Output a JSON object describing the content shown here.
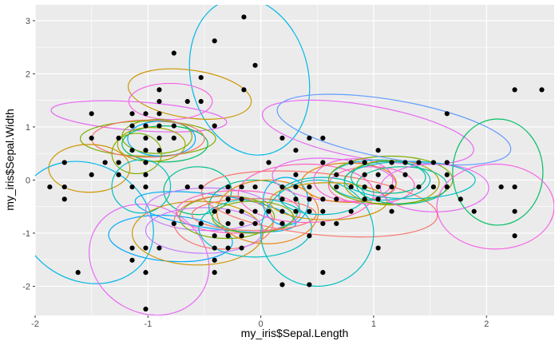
{
  "chart_data": {
    "type": "scatter",
    "xlabel": "my_iris$Sepal.Length",
    "ylabel": "my_iris$Sepal.Width",
    "xlim": [
      -2.0,
      2.6
    ],
    "ylim": [
      -2.55,
      3.3
    ],
    "x_ticks": [
      -2,
      -1,
      0,
      1,
      2
    ],
    "y_ticks": [
      -2,
      -1,
      0,
      1,
      2,
      3
    ],
    "x_tick_labels": [
      "-2",
      "-1",
      "0",
      "1",
      "2"
    ],
    "y_tick_labels": [
      "-2",
      "-1",
      "0",
      "1",
      "2",
      "3"
    ],
    "grid": true,
    "legend": "none",
    "panel_background": "#ebebeb",
    "grid_color": "#ffffff",
    "point_color": "#000000",
    "points": [
      [
        -0.15,
        3.07
      ],
      [
        -0.41,
        2.62
      ],
      [
        -0.77,
        2.39
      ],
      [
        -0.53,
        1.93
      ],
      [
        -0.05,
        2.16
      ],
      [
        -0.15,
        1.7
      ],
      [
        -0.9,
        1.7
      ],
      [
        -0.9,
        1.48
      ],
      [
        -0.65,
        1.48
      ],
      [
        -0.53,
        1.48
      ],
      [
        -0.9,
        1.25
      ],
      [
        -1.02,
        1.25
      ],
      [
        -1.14,
        1.25
      ],
      [
        -1.5,
        1.25
      ],
      [
        -1.14,
        1.02
      ],
      [
        -1.02,
        1.02
      ],
      [
        -0.9,
        1.02
      ],
      [
        -0.77,
        1.02
      ],
      [
        -0.41,
        1.02
      ],
      [
        -1.02,
        0.79
      ],
      [
        -0.9,
        0.79
      ],
      [
        -0.77,
        0.79
      ],
      [
        -1.26,
        0.79
      ],
      [
        -1.5,
        0.79
      ],
      [
        -1.02,
        0.56
      ],
      [
        -0.9,
        0.56
      ],
      [
        -1.14,
        0.56
      ],
      [
        -1.02,
        0.33
      ],
      [
        -1.38,
        0.33
      ],
      [
        -1.74,
        0.33
      ],
      [
        -1.26,
        0.33
      ],
      [
        -1.5,
        0.1
      ],
      [
        -1.26,
        0.1
      ],
      [
        -1.02,
        0.1
      ],
      [
        -1.87,
        -0.13
      ],
      [
        -1.74,
        -0.13
      ],
      [
        -1.14,
        -0.13
      ],
      [
        -1.02,
        -0.13
      ],
      [
        -1.74,
        -0.36
      ],
      [
        0.07,
        0.33
      ],
      [
        0.19,
        0.79
      ],
      [
        0.43,
        0.79
      ],
      [
        0.55,
        0.79
      ],
      [
        0.31,
        0.56
      ],
      [
        1.04,
        0.56
      ],
      [
        0.55,
        0.33
      ],
      [
        0.8,
        0.33
      ],
      [
        0.92,
        0.33
      ],
      [
        1.16,
        0.33
      ],
      [
        1.28,
        0.33
      ],
      [
        1.4,
        0.33
      ],
      [
        1.53,
        0.33
      ],
      [
        1.65,
        0.33
      ],
      [
        0.67,
        0.1
      ],
      [
        0.92,
        0.1
      ],
      [
        1.04,
        0.1
      ],
      [
        1.28,
        0.1
      ],
      [
        0.31,
        0.1
      ],
      [
        -0.53,
        -0.13
      ],
      [
        -0.29,
        -0.13
      ],
      [
        -0.05,
        -0.13
      ],
      [
        0.19,
        -0.13
      ],
      [
        0.43,
        -0.13
      ],
      [
        0.67,
        -0.13
      ],
      [
        0.8,
        -0.13
      ],
      [
        0.92,
        -0.13
      ],
      [
        1.04,
        -0.13
      ],
      [
        1.16,
        -0.13
      ],
      [
        1.4,
        -0.13
      ],
      [
        1.53,
        -0.13
      ],
      [
        1.65,
        -0.13
      ],
      [
        2.13,
        -0.13
      ],
      [
        2.25,
        -0.13
      ],
      [
        -0.29,
        -0.36
      ],
      [
        -0.17,
        -0.36
      ],
      [
        0.19,
        -0.36
      ],
      [
        0.31,
        -0.36
      ],
      [
        0.43,
        -0.36
      ],
      [
        0.55,
        -0.36
      ],
      [
        0.67,
        -0.36
      ],
      [
        0.92,
        -0.36
      ],
      [
        1.04,
        -0.36
      ],
      [
        1.77,
        -0.36
      ],
      [
        -0.41,
        -0.59
      ],
      [
        -0.29,
        -0.59
      ],
      [
        -0.17,
        -0.59
      ],
      [
        -0.05,
        -0.59
      ],
      [
        0.07,
        -0.59
      ],
      [
        0.19,
        -0.59
      ],
      [
        0.31,
        -0.59
      ],
      [
        0.43,
        -0.59
      ],
      [
        0.55,
        -0.59
      ],
      [
        0.8,
        -0.59
      ],
      [
        1.16,
        -0.59
      ],
      [
        1.89,
        -0.59
      ],
      [
        2.25,
        -0.59
      ],
      [
        -0.77,
        -0.82
      ],
      [
        -0.53,
        -0.82
      ],
      [
        -0.29,
        -0.82
      ],
      [
        -0.17,
        -0.82
      ],
      [
        -0.05,
        -0.82
      ],
      [
        0.19,
        -0.82
      ],
      [
        0.55,
        -0.82
      ],
      [
        0.67,
        -0.82
      ],
      [
        -0.41,
        -1.05
      ],
      [
        -0.29,
        -1.05
      ],
      [
        -0.17,
        -1.05
      ],
      [
        0.43,
        -1.05
      ],
      [
        2.25,
        -1.05
      ],
      [
        -0.41,
        -1.28
      ],
      [
        -0.29,
        -1.28
      ],
      [
        -0.17,
        -1.28
      ],
      [
        -0.9,
        -1.28
      ],
      [
        -1.14,
        -1.28
      ],
      [
        -1.02,
        -1.28
      ],
      [
        1.04,
        -1.28
      ],
      [
        -0.41,
        -1.51
      ],
      [
        -1.14,
        -1.51
      ],
      [
        -0.41,
        -1.74
      ],
      [
        -1.02,
        -1.74
      ],
      [
        -1.62,
        -1.74
      ],
      [
        0.55,
        -1.74
      ],
      [
        0.19,
        -1.97
      ],
      [
        0.43,
        -1.97
      ],
      [
        -1.02,
        -2.43
      ],
      [
        1.65,
        1.25
      ],
      [
        2.25,
        1.7
      ],
      [
        2.49,
        1.7
      ],
      [
        1.65,
        0.1
      ],
      [
        -0.65,
        -0.13
      ],
      [
        -0.17,
        -0.13
      ],
      [
        0.31,
        -0.13
      ]
    ],
    "ellipses": [
      {
        "cx": -0.1,
        "cy": 1.95,
        "rx": 0.52,
        "ry": 1.5,
        "angle": 14,
        "color": "#00b8e7"
      },
      {
        "cx": -0.63,
        "cy": 1.62,
        "rx": 0.55,
        "ry": 0.45,
        "angle": -8,
        "color": "#cd9600"
      },
      {
        "cx": -0.8,
        "cy": 1.48,
        "rx": 0.37,
        "ry": 0.34,
        "angle": 0,
        "color": "#f564e3"
      },
      {
        "cx": -1.08,
        "cy": 1.2,
        "rx": 0.78,
        "ry": 0.27,
        "angle": -4,
        "color": "#e76bf3"
      },
      {
        "cx": -1.0,
        "cy": 0.78,
        "rx": 0.6,
        "ry": 0.33,
        "angle": 0,
        "color": "#7cae00"
      },
      {
        "cx": -0.88,
        "cy": 0.78,
        "rx": 0.3,
        "ry": 0.33,
        "angle": 0,
        "color": "#00a9ff"
      },
      {
        "cx": -0.92,
        "cy": 0.82,
        "rx": 0.31,
        "ry": 0.32,
        "angle": 0,
        "color": "#7cae00"
      },
      {
        "cx": -0.85,
        "cy": 0.68,
        "rx": 0.38,
        "ry": 0.34,
        "angle": 0,
        "color": "#00be67"
      },
      {
        "cx": -0.97,
        "cy": 0.67,
        "rx": 0.3,
        "ry": 0.32,
        "angle": 0,
        "color": "#a3a500"
      },
      {
        "cx": -1.0,
        "cy": 0.78,
        "rx": 0.5,
        "ry": 0.35,
        "angle": 0,
        "color": "#f8766d"
      },
      {
        "cx": -1.1,
        "cy": 0.5,
        "rx": 0.22,
        "ry": 0.38,
        "angle": 0,
        "color": "#7cae00"
      },
      {
        "cx": -1.52,
        "cy": 0.22,
        "rx": 0.36,
        "ry": 0.45,
        "angle": 0,
        "color": "#cd9600"
      },
      {
        "cx": -1.06,
        "cy": -0.12,
        "rx": 0.26,
        "ry": 0.5,
        "angle": 0,
        "color": "#00bfc4"
      },
      {
        "cx": -1.55,
        "cy": -0.8,
        "rx": 0.62,
        "ry": 1.1,
        "angle": -28,
        "color": "#00b8e7"
      },
      {
        "cx": -0.99,
        "cy": -1.5,
        "rx": 0.55,
        "ry": 1.0,
        "angle": -30,
        "color": "#e76bf3"
      },
      {
        "cx": -0.8,
        "cy": -1.1,
        "rx": 0.55,
        "ry": 0.43,
        "angle": -4,
        "color": "#00a9ff"
      },
      {
        "cx": -0.56,
        "cy": -1.0,
        "rx": 0.58,
        "ry": 0.6,
        "angle": 0,
        "color": "#cd9600"
      },
      {
        "cx": -0.4,
        "cy": -0.6,
        "rx": 0.72,
        "ry": 0.32,
        "angle": -8,
        "color": "#00b0f6"
      },
      {
        "cx": -0.56,
        "cy": -0.2,
        "rx": 0.3,
        "ry": 0.45,
        "angle": 0,
        "color": "#00c08b"
      },
      {
        "cx": -0.47,
        "cy": -0.55,
        "rx": 0.55,
        "ry": 0.4,
        "angle": 0,
        "color": "#c77cff"
      },
      {
        "cx": -0.3,
        "cy": -0.7,
        "rx": 0.42,
        "ry": 0.4,
        "angle": 0,
        "color": "#7cae00"
      },
      {
        "cx": -0.33,
        "cy": -0.8,
        "rx": 0.44,
        "ry": 0.5,
        "angle": 0,
        "color": "#f8766d"
      },
      {
        "cx": -0.5,
        "cy": -0.95,
        "rx": 0.52,
        "ry": 0.43,
        "angle": 0,
        "color": "#c77cff"
      },
      {
        "cx": -0.2,
        "cy": -0.6,
        "rx": 0.55,
        "ry": 0.4,
        "angle": 0,
        "color": "#ff61c3"
      },
      {
        "cx": -0.05,
        "cy": -0.9,
        "rx": 0.5,
        "ry": 0.55,
        "angle": 0,
        "color": "#00bfc4"
      },
      {
        "cx": -0.06,
        "cy": -0.5,
        "rx": 0.4,
        "ry": 0.5,
        "angle": 0,
        "color": "#00c08b"
      },
      {
        "cx": 0.06,
        "cy": -0.6,
        "rx": 0.45,
        "ry": 0.6,
        "angle": 0,
        "color": "#e68613"
      },
      {
        "cx": 0.22,
        "cy": -0.4,
        "rx": 0.2,
        "ry": 0.45,
        "angle": 0,
        "color": "#00b0f6"
      },
      {
        "cx": -0.07,
        "cy": -0.7,
        "rx": 0.36,
        "ry": 0.3,
        "angle": 0,
        "color": "#7cae00"
      },
      {
        "cx": -0.06,
        "cy": -0.65,
        "rx": 0.55,
        "ry": 0.3,
        "angle": 0,
        "color": "#f8766d"
      },
      {
        "cx": 0.52,
        "cy": -0.45,
        "rx": 1.05,
        "ry": 0.58,
        "angle": -6,
        "color": "#f8766d"
      },
      {
        "cx": 0.5,
        "cy": -1.0,
        "rx": 0.5,
        "ry": 1.0,
        "angle": 0,
        "color": "#00bfc4"
      },
      {
        "cx": 0.4,
        "cy": -0.25,
        "rx": 0.6,
        "ry": 0.55,
        "angle": 0,
        "color": "#ff61c3"
      },
      {
        "cx": 0.54,
        "cy": -0.3,
        "rx": 0.38,
        "ry": 0.35,
        "angle": 0,
        "color": "#00bfc4"
      },
      {
        "cx": 0.6,
        "cy": -0.4,
        "rx": 0.52,
        "ry": 0.35,
        "angle": 0,
        "color": "#cd9600"
      },
      {
        "cx": 0.65,
        "cy": 0.0,
        "rx": 0.55,
        "ry": 0.4,
        "angle": -5,
        "color": "#e76bf3"
      },
      {
        "cx": 0.78,
        "cy": -0.05,
        "rx": 0.42,
        "ry": 0.37,
        "angle": 0,
        "color": "#e68613"
      },
      {
        "cx": 0.82,
        "cy": 0.0,
        "rx": 0.35,
        "ry": 0.4,
        "angle": 0,
        "color": "#f564e3"
      },
      {
        "cx": 0.95,
        "cy": 0.9,
        "rx": 0.95,
        "ry": 0.5,
        "angle": -10,
        "color": "#e76bf3"
      },
      {
        "cx": 0.98,
        "cy": -0.1,
        "rx": 0.38,
        "ry": 0.35,
        "angle": 0,
        "color": "#ff61c3"
      },
      {
        "cx": 1.05,
        "cy": 0.0,
        "rx": 0.45,
        "ry": 0.38,
        "angle": 0,
        "color": "#00bfc4"
      },
      {
        "cx": 1.13,
        "cy": 0.05,
        "rx": 0.33,
        "ry": 0.3,
        "angle": 0,
        "color": "#00c08b"
      },
      {
        "cx": 1.16,
        "cy": -0.05,
        "rx": 0.42,
        "ry": 0.42,
        "angle": 0,
        "color": "#a3a500"
      },
      {
        "cx": 1.15,
        "cy": 0.0,
        "rx": 0.55,
        "ry": 0.45,
        "angle": 0,
        "color": "#7cae00"
      },
      {
        "cx": 1.25,
        "cy": -0.1,
        "rx": 0.4,
        "ry": 0.35,
        "angle": 0,
        "color": "#00c08b"
      },
      {
        "cx": 1.32,
        "cy": 0.0,
        "rx": 0.58,
        "ry": 0.35,
        "angle": 0,
        "color": "#00bfc4"
      },
      {
        "cx": 1.18,
        "cy": 0.95,
        "rx": 1.05,
        "ry": 0.55,
        "angle": -10,
        "color": "#619cff"
      },
      {
        "cx": 1.54,
        "cy": -0.15,
        "rx": 0.48,
        "ry": 0.45,
        "angle": 0,
        "color": "#e76bf3"
      },
      {
        "cx": 2.1,
        "cy": 0.15,
        "rx": 0.4,
        "ry": 1.0,
        "angle": 0,
        "color": "#00be67"
      },
      {
        "cx": 2.08,
        "cy": -0.5,
        "rx": 0.52,
        "ry": 0.8,
        "angle": 0,
        "color": "#f564e3"
      }
    ]
  }
}
